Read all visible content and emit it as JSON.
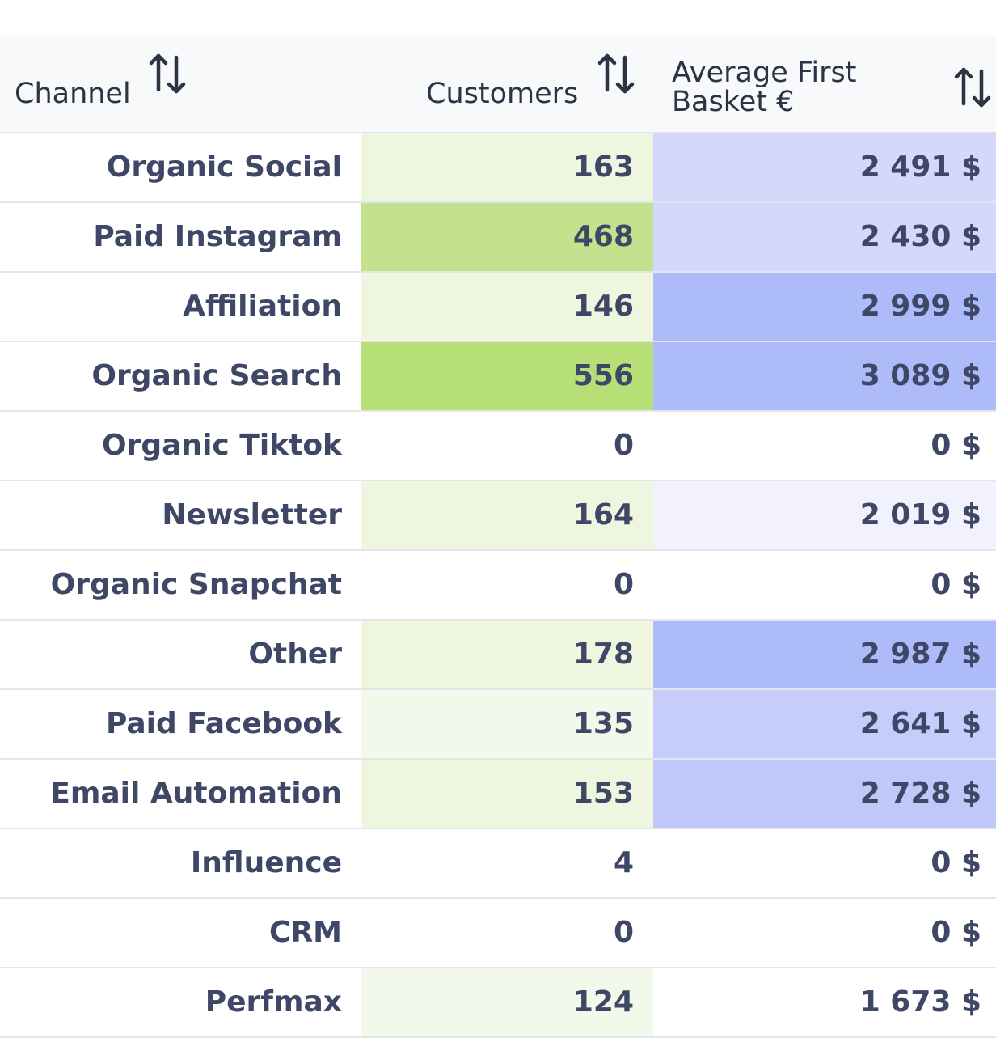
{
  "table": {
    "columns": [
      {
        "label": "Channel",
        "sort_icon": "sort-arrows-icon"
      },
      {
        "label": "Customers",
        "sort_icon": "sort-arrows-icon"
      },
      {
        "label_line1": "Average First",
        "label_line2": "Basket €",
        "sort_icon": "sort-arrows-icon"
      }
    ],
    "rows": [
      {
        "channel": "Organic Social",
        "customers": "163",
        "avg_basket": "2 491 $",
        "cust_bg": "#eef6e0",
        "avg_bg": "#d4d9fb"
      },
      {
        "channel": "Paid Instagram",
        "customers": "468",
        "avg_basket": "2 430 $",
        "cust_bg": "#c2e28e",
        "avg_bg": "#d4d9fb"
      },
      {
        "channel": "Affiliation",
        "customers": "146",
        "avg_basket": "2 999 $",
        "cust_bg": "#eef6e0",
        "avg_bg": "#aebbf9"
      },
      {
        "channel": "Organic Search",
        "customers": "556",
        "avg_basket": "3 089 $",
        "cust_bg": "#b6e077",
        "avg_bg": "#aebbf9"
      },
      {
        "channel": "Organic Tiktok",
        "customers": "0",
        "avg_basket": "0 $",
        "cust_bg": "#ffffff",
        "avg_bg": "#ffffff"
      },
      {
        "channel": "Newsletter",
        "customers": "164",
        "avg_basket": "2 019 $",
        "cust_bg": "#eef6e0",
        "avg_bg": "#f1f2fd"
      },
      {
        "channel": "Organic Snapchat",
        "customers": "0",
        "avg_basket": "0 $",
        "cust_bg": "#ffffff",
        "avg_bg": "#ffffff"
      },
      {
        "channel": "Other",
        "customers": "178",
        "avg_basket": "2 987 $",
        "cust_bg": "#eef6e0",
        "avg_bg": "#aebbf9"
      },
      {
        "channel": "Paid Facebook",
        "customers": "135",
        "avg_basket": "2 641 $",
        "cust_bg": "#f3f9ea",
        "avg_bg": "#c6cdfa"
      },
      {
        "channel": "Email Automation",
        "customers": "153",
        "avg_basket": "2 728 $",
        "cust_bg": "#eef6e0",
        "avg_bg": "#c0c8fa"
      },
      {
        "channel": "Influence",
        "customers": "4",
        "avg_basket": "0 $",
        "cust_bg": "#ffffff",
        "avg_bg": "#ffffff"
      },
      {
        "channel": "CRM",
        "customers": "0",
        "avg_basket": "0 $",
        "cust_bg": "#ffffff",
        "avg_bg": "#ffffff"
      },
      {
        "channel": "Perfmax",
        "customers": "124",
        "avg_basket": "1 673 $",
        "cust_bg": "#f3f9ea",
        "avg_bg": "#ffffff"
      }
    ]
  }
}
